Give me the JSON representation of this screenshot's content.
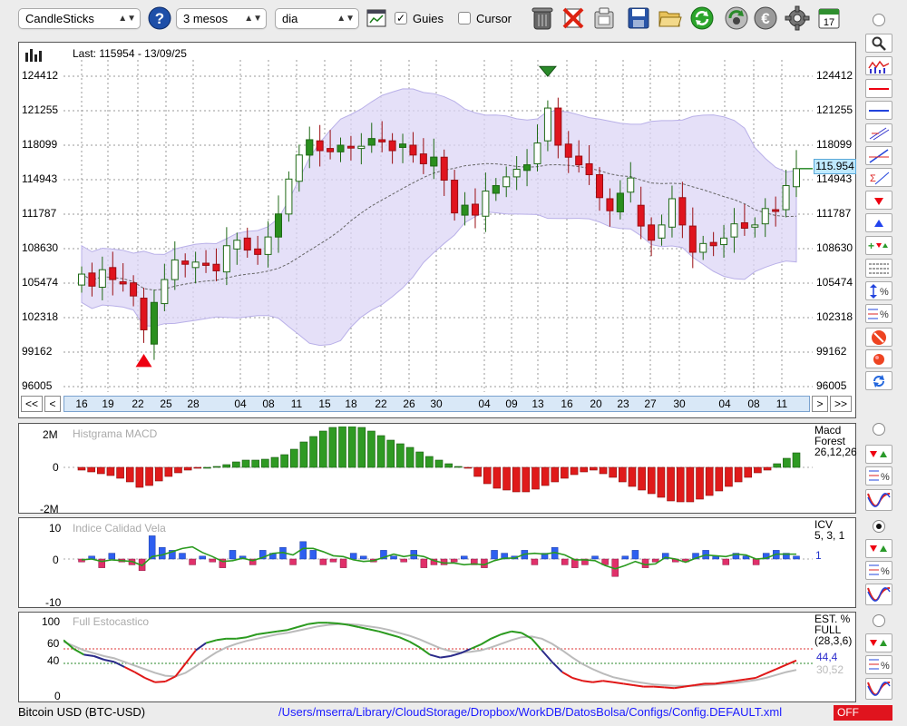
{
  "toolbar": {
    "symbol_select": "CandleSticks",
    "period_select": "3 mesos",
    "interval_select": "dia",
    "guides_label": "Guies",
    "guides_checked": true,
    "cursor_label": "Cursor",
    "cursor_checked": false,
    "icons": [
      "help-icon",
      "chart-window-icon",
      "trash-icon",
      "delete-icon",
      "clipboard-icon",
      "save-icon",
      "folder-open-icon",
      "refresh-icon",
      "update-icon",
      "euro-icon",
      "settings-icon",
      "calendar-icon"
    ],
    "calendar_day": "17"
  },
  "price_panel": {
    "last_label": "Last: 115954 - 13/09/25",
    "y_ticks": [
      "124412",
      "121255",
      "118099",
      "114943",
      "111787",
      "108630",
      "105474",
      "102318",
      "99162",
      "96005"
    ],
    "y_range": [
      96005,
      124412
    ],
    "current_price": "115.954",
    "current_value": 115954,
    "x_ticks": [
      "16",
      "19",
      "22",
      "25",
      "28",
      "04",
      "08",
      "11",
      "15",
      "18",
      "22",
      "26",
      "30",
      "04",
      "09",
      "13",
      "16",
      "20",
      "23",
      "27",
      "30",
      "04",
      "08",
      "11"
    ],
    "nav_prev_all": "<<",
    "nav_prev": "<",
    "nav_next": ">",
    "nav_next_all": ">>"
  },
  "macd_panel": {
    "title": "Histgrama MACD",
    "label1": "Macd",
    "label2": "Forest",
    "label3": "26,12,26",
    "y_ticks": [
      "2M",
      "0",
      "-2M"
    ]
  },
  "icv_panel": {
    "title": "Indice Calidad Vela",
    "label1": "ICV",
    "label2": "5, 3, 1",
    "value": "1",
    "y_ticks": [
      "10",
      "0",
      "-10"
    ]
  },
  "stoch_panel": {
    "title": "Full Estocastico",
    "label1": "EST. %",
    "label2": "FULL",
    "label3": "(28,3,6)",
    "value1": "44,4",
    "value2": "30,52",
    "y_ticks": [
      "100",
      "60",
      "40",
      "0"
    ]
  },
  "status": {
    "instrument": "Bitcoin USD (BTC-USD)",
    "path": "/Users/mserra/Library/CloudStorage/Dropbox/WorkDB/DatosBolsa/Configs/Config.DEFAULT.xml",
    "off_label": "OFF"
  },
  "colors": {
    "up": "#2a8f1e",
    "down": "#e0141e",
    "band": "#dcd6f6",
    "macd_pos": "#2f9a23",
    "macd_neg": "#e01a1a",
    "icv_pos": "#2e5ff0",
    "icv_neg": "#e0306a",
    "stoch_k": "#2a9a1e",
    "stoch_slow": "#bbbbbb",
    "status_off": "#e0141e"
  }
}
